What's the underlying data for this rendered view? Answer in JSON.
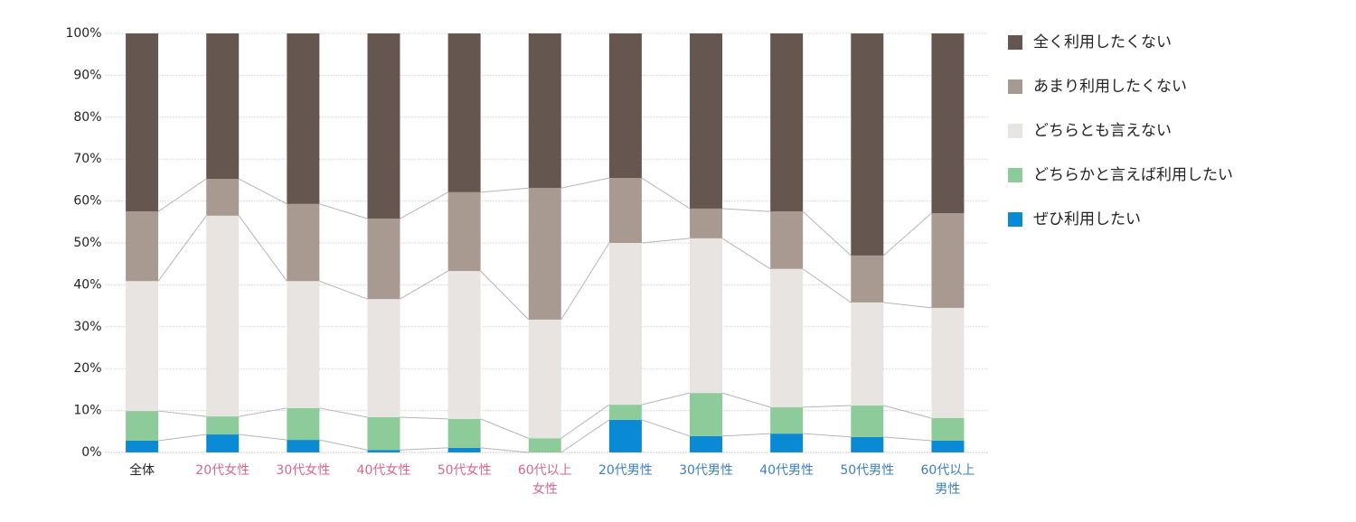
{
  "chart_data": {
    "type": "stacked-bar-100",
    "categories": [
      "全体",
      "20代女性",
      "30代女性",
      "40代女性",
      "50代女性",
      "60代以上\n女性",
      "20代男性",
      "30代男性",
      "40代男性",
      "50代男性",
      "60代以上\n男性"
    ],
    "category_colors": [
      "#222222",
      "#d9668a",
      "#d9668a",
      "#d9668a",
      "#d9668a",
      "#d9668a",
      "#3a7fc1",
      "#3a7fc1",
      "#3a7fc1",
      "#3a7fc1",
      "#3a7fc1"
    ],
    "series": [
      {
        "name": "全く利用したくない",
        "color": "#65574f",
        "values": [
          42.5,
          34.7,
          40.7,
          44.2,
          37.9,
          36.9,
          34.5,
          41.8,
          42.5,
          53.0,
          42.9
        ]
      },
      {
        "name": "あまり利用したくない",
        "color": "#a89a90",
        "values": [
          16.6,
          8.8,
          18.4,
          19.2,
          18.8,
          31.4,
          15.5,
          7.1,
          13.7,
          11.2,
          22.6
        ]
      },
      {
        "name": "どちらとも言えない",
        "color": "#e8e4e1",
        "values": [
          31.0,
          47.9,
          30.3,
          28.2,
          35.3,
          28.3,
          38.6,
          36.9,
          33.0,
          24.6,
          26.3
        ]
      },
      {
        "name": "どちらかと言えば利用したい",
        "color": "#8dcb9b",
        "values": [
          7.1,
          4.3,
          7.6,
          7.8,
          6.9,
          3.4,
          3.6,
          10.3,
          6.3,
          7.5,
          5.4
        ]
      },
      {
        "name": "ぜひ利用したい",
        "color": "#0a8ad4",
        "values": [
          2.8,
          4.3,
          3.0,
          0.6,
          1.1,
          0,
          7.8,
          3.9,
          4.5,
          3.7,
          2.8
        ]
      }
    ],
    "ylim": [
      0,
      100
    ],
    "yticks": [
      {
        "value": 0,
        "label": "0%"
      },
      {
        "value": 10,
        "label": "10%"
      },
      {
        "value": 20,
        "label": "20%"
      },
      {
        "value": 30,
        "label": "30%"
      },
      {
        "value": 40,
        "label": "40%"
      },
      {
        "value": 50,
        "label": "50%"
      },
      {
        "value": 60,
        "label": "60%"
      },
      {
        "value": 70,
        "label": "70%"
      },
      {
        "value": 80,
        "label": "80%"
      },
      {
        "value": 90,
        "label": "90%"
      },
      {
        "value": 100,
        "label": "100%"
      }
    ],
    "grid": true,
    "legend": "right"
  }
}
